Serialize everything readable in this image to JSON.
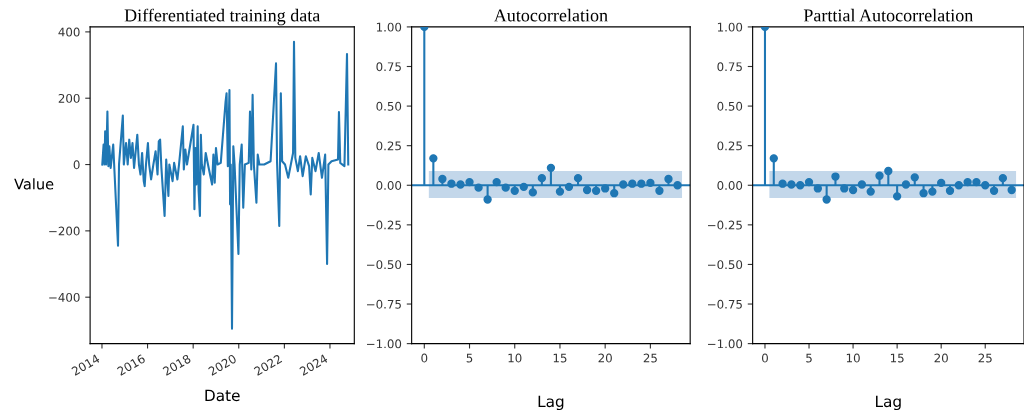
{
  "chart_data": [
    {
      "type": "line",
      "title": "Differentiated training data",
      "xlabel": "Date",
      "ylabel": "Value",
      "xlim": [
        "2013-06-25",
        "2025-01-25"
      ],
      "ylim": [
        -540,
        415
      ],
      "xticks": [
        {
          "value": "2014",
          "label": "2014"
        },
        {
          "value": "2016",
          "label": "2016"
        },
        {
          "value": "2018",
          "label": "2018"
        },
        {
          "value": "2020",
          "label": "2020"
        },
        {
          "value": "2022",
          "label": "2022"
        },
        {
          "value": "2024",
          "label": "2024"
        }
      ],
      "yticks": [
        {
          "value": -400,
          "label": "−400"
        },
        {
          "value": -200,
          "label": "−200"
        },
        0,
        200,
        400
      ],
      "grid": false,
      "legend": false,
      "marker": "none",
      "line_style": "solid",
      "series": [
        {
          "color": "#1f77b4",
          "x": [
            "2014-01-06",
            "2014-01-27",
            "2014-02-11",
            "2014-02-21",
            "2014-03-09",
            "2014-03-29",
            "2014-04-14",
            "2014-04-29",
            "2014-05-20",
            "2014-06-30",
            "2014-07-15",
            "2014-09-15",
            "2014-10-01",
            "2014-12-01",
            "2014-12-17",
            "2015-01-22",
            "2015-02-17",
            "2015-03-14",
            "2015-04-09",
            "2015-05-05",
            "2015-05-30",
            "2015-07-21",
            "2015-08-16",
            "2015-09-10",
            "2015-10-06",
            "2015-11-01",
            "2015-11-16",
            "2015-12-07",
            "2016-01-07",
            "2016-01-27",
            "2016-02-27",
            "2016-04-03",
            "2016-05-09",
            "2016-06-09",
            "2016-06-29",
            "2016-07-20",
            "2016-08-10",
            "2016-09-30",
            "2016-10-26",
            "2016-11-30",
            "2016-12-15",
            "2017-02-05",
            "2017-03-02",
            "2017-04-23",
            "2017-05-19",
            "2017-07-19",
            "2017-08-04",
            "2017-08-29",
            "2017-09-24",
            "2018-01-06",
            "2018-01-21",
            "2018-02-06",
            "2018-02-21",
            "2018-03-14",
            "2018-03-29",
            "2018-04-19",
            "2018-05-04",
            "2018-05-20",
            "2018-06-20",
            "2018-07-21",
            "2018-08-26",
            "2018-10-31",
            "2018-11-21",
            "2018-12-12",
            "2019-01-01",
            "2019-01-27",
            "2019-03-19",
            "2019-06-04",
            "2019-06-20",
            "2019-07-10",
            "2019-08-05",
            "2019-08-15",
            "2019-08-26",
            "2019-09-15",
            "2019-10-06",
            "2019-10-26",
            "2019-12-27",
            "2020-01-17",
            "2020-02-17",
            "2020-03-13",
            "2020-04-08",
            "2020-06-09",
            "2020-06-29",
            "2020-07-20",
            "2020-08-10",
            "2020-08-30",
            "2020-10-10",
            "2020-10-31",
            "2020-11-26",
            "2021-02-11",
            "2021-05-25",
            "2021-08-20",
            "2021-09-05",
            "2021-10-11",
            "2021-11-05",
            "2021-11-26",
            "2022-01-11",
            "2022-03-04",
            "2022-05-20",
            "2022-06-04",
            "2022-06-25",
            "2022-08-05",
            "2022-09-10",
            "2022-10-21",
            "2022-12-11",
            "2023-02-01",
            "2023-02-27",
            "2023-03-24",
            "2023-05-15",
            "2023-07-05",
            "2023-08-26",
            "2023-10-16",
            "2023-11-16",
            "2023-12-07",
            "2024-01-27",
            "2024-05-09",
            "2024-05-24",
            "2024-06-14",
            "2024-08-20",
            "2024-09-30",
            "2024-10-20"
          ],
          "values": [
            0,
            60,
            0,
            100,
            0,
            160,
            -5,
            55,
            -10,
            60,
            0,
            -245,
            0,
            148,
            0,
            65,
            0,
            75,
            20,
            65,
            -10,
            90,
            0,
            -30,
            35,
            -50,
            -65,
            0,
            65,
            0,
            -45,
            0,
            40,
            -30,
            70,
            75,
            -10,
            -155,
            15,
            -95,
            0,
            -50,
            5,
            -45,
            0,
            115,
            -15,
            45,
            0,
            120,
            -135,
            50,
            -60,
            115,
            -80,
            -155,
            90,
            0,
            -30,
            35,
            0,
            -60,
            30,
            -55,
            50,
            0,
            5,
            190,
            215,
            -5,
            225,
            -120,
            0,
            -495,
            55,
            0,
            -270,
            0,
            60,
            -130,
            0,
            5,
            160,
            -15,
            210,
            0,
            -115,
            30,
            0,
            0,
            10,
            305,
            10,
            -185,
            215,
            10,
            0,
            -40,
            35,
            370,
            20,
            -20,
            25,
            -35,
            25,
            -5,
            -90,
            20,
            -20,
            35,
            -40,
            30,
            -300,
            0,
            10,
            15,
            158,
            5,
            -5,
            333,
            0
          ]
        }
      ]
    },
    {
      "type": "lollipop",
      "title": "Autocorrelation",
      "xlabel": "Lag",
      "xlim": [
        -1.4,
        29.4
      ],
      "ylim": [
        -1,
        1
      ],
      "xticks": [
        0,
        5,
        10,
        15,
        20,
        25
      ],
      "yticks": [
        {
          "value": -1,
          "label": "−1.00"
        },
        {
          "value": -0.75,
          "label": "−0.75"
        },
        {
          "value": -0.5,
          "label": "−0.50"
        },
        {
          "value": -0.25,
          "label": "−0.25"
        },
        {
          "value": 0,
          "label": "0.00"
        },
        {
          "value": 0.25,
          "label": "0.25"
        },
        {
          "value": 0.5,
          "label": "0.50"
        },
        {
          "value": 0.75,
          "label": "0.75"
        },
        {
          "value": 1,
          "label": "1.00"
        }
      ],
      "grid": false,
      "legend": false,
      "marker": "circle",
      "line_style": "solid",
      "bands": [
        {
          "axis": "y",
          "from": -0.08,
          "to": 0.09,
          "color": "#c3d7ea"
        }
      ],
      "ref_lines": [
        {
          "axis": "y",
          "value": 0,
          "color": "#1f77b4"
        }
      ],
      "series": [
        {
          "color": "#1f77b4",
          "x": [
            0,
            1,
            2,
            3,
            4,
            5,
            6,
            7,
            8,
            9,
            10,
            11,
            12,
            13,
            14,
            15,
            16,
            17,
            18,
            19,
            20,
            21,
            22,
            23,
            24,
            25,
            26,
            27,
            28
          ],
          "values": [
            1.0,
            0.17,
            0.04,
            0.01,
            0.005,
            0.02,
            -0.015,
            -0.09,
            0.02,
            -0.015,
            -0.035,
            -0.01,
            -0.045,
            0.045,
            0.11,
            -0.04,
            -0.01,
            0.045,
            -0.03,
            -0.035,
            -0.02,
            -0.05,
            0.005,
            0.01,
            0.01,
            0.015,
            -0.035,
            0.04,
            0.0
          ]
        }
      ]
    },
    {
      "type": "lollipop",
      "title": "Parttial Autocorrelation",
      "xlabel": "Lag",
      "xlim": [
        -1.4,
        29.4
      ],
      "ylim": [
        -1,
        1
      ],
      "xticks": [
        0,
        5,
        10,
        15,
        20,
        25
      ],
      "yticks": [
        {
          "value": -1,
          "label": "−1.00"
        },
        {
          "value": -0.75,
          "label": "−0.75"
        },
        {
          "value": -0.5,
          "label": "−0.50"
        },
        {
          "value": -0.25,
          "label": "−0.25"
        },
        {
          "value": 0,
          "label": "0.00"
        },
        {
          "value": 0.25,
          "label": "0.25"
        },
        {
          "value": 0.5,
          "label": "0.50"
        },
        {
          "value": 0.75,
          "label": "0.75"
        },
        {
          "value": 1,
          "label": "1.00"
        }
      ],
      "grid": false,
      "legend": false,
      "marker": "circle",
      "line_style": "solid",
      "bands": [
        {
          "axis": "y",
          "from": -0.08,
          "to": 0.09,
          "color": "#c3d7ea"
        }
      ],
      "ref_lines": [
        {
          "axis": "y",
          "value": 0,
          "color": "#1f77b4"
        }
      ],
      "series": [
        {
          "color": "#1f77b4",
          "x": [
            0,
            1,
            2,
            3,
            4,
            5,
            6,
            7,
            8,
            9,
            10,
            11,
            12,
            13,
            14,
            15,
            16,
            17,
            18,
            19,
            20,
            21,
            22,
            23,
            24,
            25,
            26,
            27,
            28
          ],
          "values": [
            1.0,
            0.17,
            0.01,
            0.005,
            0.0,
            0.02,
            -0.02,
            -0.09,
            0.055,
            -0.02,
            -0.03,
            0.005,
            -0.04,
            0.06,
            0.09,
            -0.07,
            0.005,
            0.05,
            -0.05,
            -0.04,
            0.015,
            -0.035,
            0.0,
            0.02,
            0.02,
            0.0,
            -0.035,
            0.045,
            -0.03
          ]
        }
      ]
    }
  ]
}
